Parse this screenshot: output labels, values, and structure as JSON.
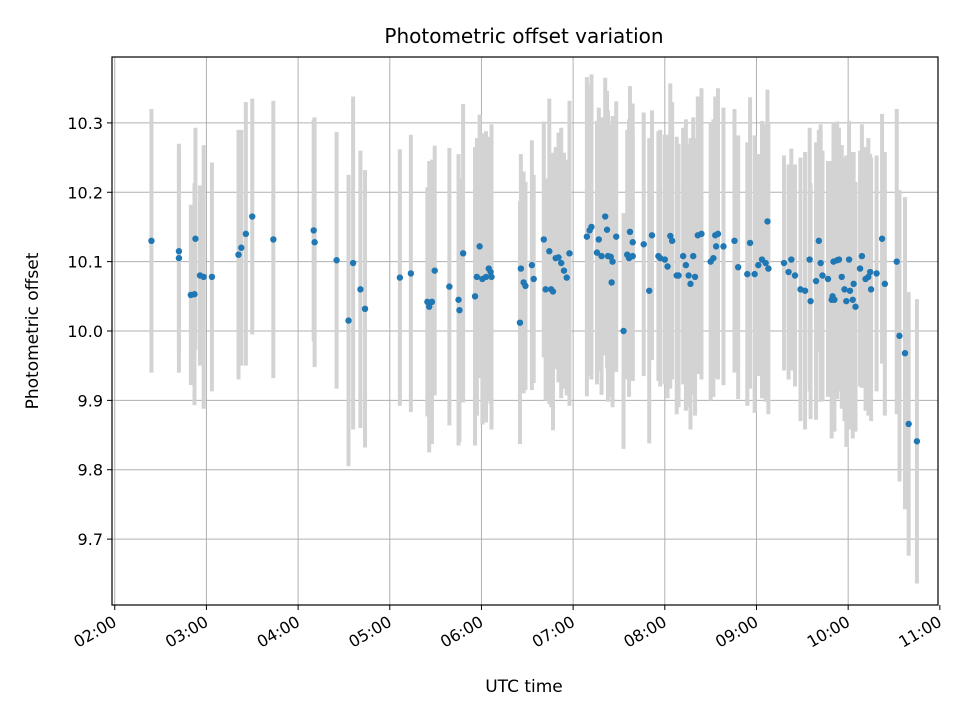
{
  "chart_data": {
    "type": "scatter",
    "title": "Photometric offset variation",
    "xlabel": "UTC time",
    "ylabel": "Photometric offset",
    "x_unit": "hours UTC",
    "xlim": [
      1.97,
      10.98
    ],
    "ylim": [
      9.605,
      10.395
    ],
    "xticks": [
      2,
      3,
      4,
      5,
      6,
      7,
      8,
      9,
      10,
      11
    ],
    "xtick_labels": [
      "02:00",
      "03:00",
      "04:00",
      "05:00",
      "06:00",
      "07:00",
      "08:00",
      "09:00",
      "10:00",
      "11:00"
    ],
    "yticks": [
      9.7,
      9.8,
      9.9,
      10.0,
      10.1,
      10.2,
      10.3
    ],
    "ytick_labels": [
      "9.7",
      "9.8",
      "9.9",
      "10.0",
      "10.1",
      "10.2",
      "10.3"
    ],
    "grid": true,
    "marker_color": "#1f77b4",
    "errorbar_color": "#d3d3d3",
    "points": [
      [
        2.4,
        10.13,
        0.19
      ],
      [
        2.7,
        10.115,
        0.15
      ],
      [
        2.7,
        10.105,
        0.165
      ],
      [
        2.83,
        10.052,
        0.13
      ],
      [
        2.87,
        10.053,
        0.16
      ],
      [
        2.88,
        10.133,
        0.16
      ],
      [
        2.93,
        10.08,
        0.13
      ],
      [
        2.97,
        10.078,
        0.19
      ],
      [
        3.06,
        10.078,
        0.165
      ],
      [
        3.35,
        10.11,
        0.18
      ],
      [
        3.38,
        10.12,
        0.17
      ],
      [
        3.43,
        10.14,
        0.19
      ],
      [
        3.5,
        10.165,
        0.17
      ],
      [
        3.73,
        10.132,
        0.2
      ],
      [
        4.17,
        10.145,
        0.16
      ],
      [
        4.18,
        10.128,
        0.18
      ],
      [
        4.42,
        10.102,
        0.185
      ],
      [
        4.55,
        10.015,
        0.21
      ],
      [
        4.6,
        10.098,
        0.24
      ],
      [
        4.68,
        10.06,
        0.2
      ],
      [
        4.73,
        10.032,
        0.2
      ],
      [
        5.11,
        10.077,
        0.185
      ],
      [
        5.23,
        10.083,
        0.2
      ],
      [
        5.41,
        10.042,
        0.165
      ],
      [
        5.43,
        10.035,
        0.21
      ],
      [
        5.46,
        10.042,
        0.205
      ],
      [
        5.49,
        10.087,
        0.18
      ],
      [
        5.65,
        10.064,
        0.2
      ],
      [
        5.75,
        10.045,
        0.21
      ],
      [
        5.76,
        10.03,
        0.19
      ],
      [
        5.8,
        10.112,
        0.215
      ],
      [
        5.93,
        10.05,
        0.215
      ],
      [
        5.95,
        10.078,
        0.2
      ],
      [
        5.98,
        10.122,
        0.19
      ],
      [
        6.01,
        10.075,
        0.21
      ],
      [
        6.05,
        10.078,
        0.21
      ],
      [
        6.08,
        10.09,
        0.19
      ],
      [
        6.1,
        10.085,
        0.19
      ],
      [
        6.11,
        10.078,
        0.22
      ],
      [
        6.42,
        10.012,
        0.175
      ],
      [
        6.43,
        10.09,
        0.165
      ],
      [
        6.46,
        10.07,
        0.16
      ],
      [
        6.48,
        10.065,
        0.15
      ],
      [
        6.55,
        10.095,
        0.18
      ],
      [
        6.57,
        10.075,
        0.15
      ],
      [
        6.68,
        10.132,
        0.17
      ],
      [
        6.7,
        10.06,
        0.16
      ],
      [
        6.74,
        10.115,
        0.22
      ],
      [
        6.76,
        10.06,
        0.17
      ],
      [
        6.78,
        10.057,
        0.2
      ],
      [
        6.81,
        10.105,
        0.16
      ],
      [
        6.84,
        10.106,
        0.18
      ],
      [
        6.87,
        10.098,
        0.195
      ],
      [
        6.9,
        10.087,
        0.17
      ],
      [
        6.93,
        10.077,
        0.17
      ],
      [
        6.96,
        10.112,
        0.22
      ],
      [
        7.15,
        10.136,
        0.23
      ],
      [
        7.18,
        10.145,
        0.21
      ],
      [
        7.2,
        10.15,
        0.22
      ],
      [
        7.26,
        10.113,
        0.19
      ],
      [
        7.28,
        10.132,
        0.19
      ],
      [
        7.31,
        10.108,
        0.2
      ],
      [
        7.35,
        10.165,
        0.2
      ],
      [
        7.37,
        10.146,
        0.2
      ],
      [
        7.38,
        10.108,
        0.21
      ],
      [
        7.41,
        10.107,
        0.19
      ],
      [
        7.43,
        10.1,
        0.21
      ],
      [
        7.42,
        10.07,
        0.165
      ],
      [
        7.47,
        10.136,
        0.195
      ],
      [
        7.55,
        10.0,
        0.17
      ],
      [
        7.59,
        10.11,
        0.18
      ],
      [
        7.61,
        10.105,
        0.2
      ],
      [
        7.62,
        10.143,
        0.21
      ],
      [
        7.65,
        10.128,
        0.2
      ],
      [
        7.65,
        10.108,
        0.18
      ],
      [
        7.77,
        10.125,
        0.19
      ],
      [
        7.83,
        10.058,
        0.22
      ],
      [
        7.86,
        10.138,
        0.18
      ],
      [
        7.93,
        10.108,
        0.18
      ],
      [
        7.95,
        10.105,
        0.185
      ],
      [
        8.0,
        10.103,
        0.18
      ],
      [
        8.03,
        10.093,
        0.19
      ],
      [
        8.06,
        10.137,
        0.22
      ],
      [
        8.08,
        10.13,
        0.2
      ],
      [
        8.13,
        10.08,
        0.2
      ],
      [
        8.15,
        10.08,
        0.19
      ],
      [
        8.2,
        10.108,
        0.185
      ],
      [
        8.23,
        10.095,
        0.21
      ],
      [
        8.26,
        10.08,
        0.19
      ],
      [
        8.28,
        10.068,
        0.21
      ],
      [
        8.31,
        10.108,
        0.2
      ],
      [
        8.33,
        10.078,
        0.2
      ],
      [
        8.36,
        10.138,
        0.2
      ],
      [
        8.4,
        10.14,
        0.21
      ],
      [
        8.5,
        10.1,
        0.2
      ],
      [
        8.53,
        10.105,
        0.2
      ],
      [
        8.55,
        10.138,
        0.2
      ],
      [
        8.58,
        10.14,
        0.21
      ],
      [
        8.56,
        10.122,
        0.19
      ],
      [
        8.64,
        10.122,
        0.2
      ],
      [
        8.76,
        10.13,
        0.19
      ],
      [
        8.8,
        10.092,
        0.19
      ],
      [
        8.9,
        10.082,
        0.19
      ],
      [
        8.93,
        10.127,
        0.21
      ],
      [
        8.98,
        10.082,
        0.2
      ],
      [
        9.02,
        10.095,
        0.16
      ],
      [
        9.06,
        10.103,
        0.2
      ],
      [
        9.1,
        10.098,
        0.2
      ],
      [
        9.13,
        10.09,
        0.21
      ],
      [
        9.12,
        10.158,
        0.19
      ],
      [
        9.3,
        10.098,
        0.155
      ],
      [
        9.35,
        10.085,
        0.155
      ],
      [
        9.38,
        10.103,
        0.16
      ],
      [
        9.42,
        10.08,
        0.16
      ],
      [
        9.48,
        10.06,
        0.19
      ],
      [
        9.53,
        10.058,
        0.2
      ],
      [
        9.58,
        10.103,
        0.19
      ],
      [
        9.59,
        10.043,
        0.17
      ],
      [
        9.65,
        10.072,
        0.2
      ],
      [
        9.68,
        10.13,
        0.16
      ],
      [
        9.7,
        10.098,
        0.2
      ],
      [
        9.72,
        10.08,
        0.18
      ],
      [
        9.78,
        10.075,
        0.17
      ],
      [
        9.82,
        10.045,
        0.2
      ],
      [
        9.83,
        10.05,
        0.17
      ],
      [
        9.84,
        10.1,
        0.2
      ],
      [
        9.85,
        10.045,
        0.19
      ],
      [
        9.88,
        10.102,
        0.2
      ],
      [
        9.9,
        10.103,
        0.19
      ],
      [
        9.93,
        10.078,
        0.19
      ],
      [
        9.96,
        10.06,
        0.19
      ],
      [
        9.98,
        10.043,
        0.21
      ],
      [
        10.01,
        10.103,
        0.2
      ],
      [
        10.02,
        10.058,
        0.2
      ],
      [
        10.05,
        10.045,
        0.2
      ],
      [
        10.06,
        10.068,
        0.19
      ],
      [
        10.08,
        10.035,
        0.18
      ],
      [
        10.13,
        10.09,
        0.17
      ],
      [
        10.15,
        10.108,
        0.19
      ],
      [
        10.19,
        10.075,
        0.19
      ],
      [
        10.22,
        10.078,
        0.2
      ],
      [
        10.24,
        10.085,
        0.17
      ],
      [
        10.25,
        10.06,
        0.19
      ],
      [
        10.31,
        10.083,
        0.17
      ],
      [
        10.37,
        10.133,
        0.18
      ],
      [
        10.4,
        10.068,
        0.19
      ],
      [
        10.53,
        10.1,
        0.22
      ],
      [
        10.56,
        9.993,
        0.21
      ],
      [
        10.62,
        9.968,
        0.225
      ],
      [
        10.66,
        9.866,
        0.19
      ],
      [
        10.75,
        9.841,
        0.205
      ]
    ]
  }
}
